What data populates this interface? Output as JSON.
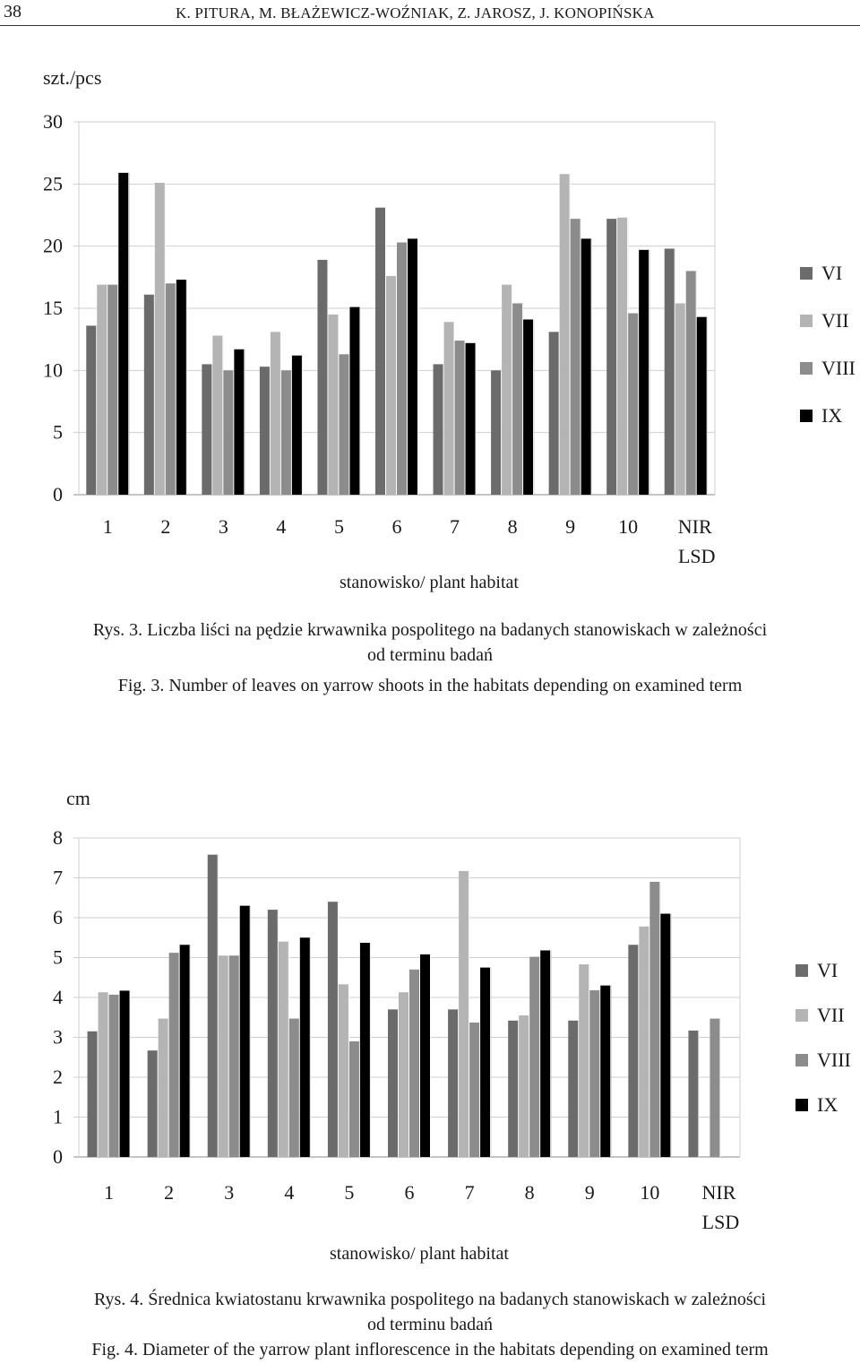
{
  "header": {
    "page_number": "38",
    "authors": "K. PITURA, M. BŁAŻEWICZ-WOŹNIAK, Z. JAROSZ, J. KONOPIŃSKA"
  },
  "colors": {
    "VI": "#6b6b6b",
    "VII": "#b4b4b4",
    "VIII": "#8c8c8c",
    "IX": "#000000"
  },
  "chart_data": [
    {
      "type": "bar",
      "title": "",
      "ylabel": "szt./pcs",
      "xlabel": "stanowisko/ plant habitat",
      "ylim": [
        0,
        30
      ],
      "yticks": [
        "0",
        "5",
        "10",
        "15",
        "20",
        "25",
        "30"
      ],
      "categories": [
        "1",
        "2",
        "3",
        "4",
        "5",
        "6",
        "7",
        "8",
        "9",
        "10",
        "NIR\nLSD"
      ],
      "category_lines": [
        [
          "1"
        ],
        [
          "2"
        ],
        [
          "3"
        ],
        [
          "4"
        ],
        [
          "5"
        ],
        [
          "6"
        ],
        [
          "7"
        ],
        [
          "8"
        ],
        [
          "9"
        ],
        [
          "10"
        ],
        [
          "NIR",
          "LSD"
        ]
      ],
      "legend": [
        "VI",
        "VII",
        "VIII",
        "IX"
      ],
      "series": [
        {
          "name": "VI",
          "values": [
            13.6,
            16.1,
            10.5,
            10.3,
            18.9,
            23.1,
            10.5,
            10.0,
            13.1,
            22.2,
            19.8
          ]
        },
        {
          "name": "VII",
          "values": [
            16.9,
            25.1,
            12.8,
            13.1,
            14.5,
            17.6,
            13.9,
            16.9,
            25.8,
            22.3,
            15.4
          ]
        },
        {
          "name": "VIII",
          "values": [
            16.9,
            17.0,
            10.0,
            10.0,
            11.3,
            20.3,
            12.4,
            15.4,
            22.2,
            14.6,
            18.0
          ]
        },
        {
          "name": "IX",
          "values": [
            25.9,
            17.3,
            11.7,
            11.2,
            15.1,
            20.6,
            12.2,
            14.1,
            20.6,
            19.7,
            14.3
          ]
        }
      ]
    },
    {
      "type": "bar",
      "title": "",
      "ylabel": "cm",
      "xlabel": "stanowisko/ plant habitat",
      "ylim": [
        0,
        8
      ],
      "yticks": [
        "0",
        "1",
        "2",
        "3",
        "4",
        "5",
        "6",
        "7",
        "8"
      ],
      "categories": [
        "1",
        "2",
        "3",
        "4",
        "5",
        "6",
        "7",
        "8",
        "9",
        "10",
        "NIR\nLSD"
      ],
      "category_lines": [
        [
          "1"
        ],
        [
          "2"
        ],
        [
          "3"
        ],
        [
          "4"
        ],
        [
          "5"
        ],
        [
          "6"
        ],
        [
          "7"
        ],
        [
          "8"
        ],
        [
          "9"
        ],
        [
          "10"
        ],
        [
          "NIR",
          "LSD"
        ]
      ],
      "legend": [
        "VI",
        "VII",
        "VIII",
        "IX"
      ],
      "series": [
        {
          "name": "VI",
          "values": [
            3.15,
            2.67,
            7.58,
            6.2,
            6.4,
            3.7,
            3.7,
            3.42,
            3.42,
            5.32,
            3.17
          ]
        },
        {
          "name": "VII",
          "values": [
            4.13,
            3.47,
            5.05,
            5.4,
            4.33,
            4.13,
            7.17,
            3.55,
            4.83,
            5.78,
            0.0
          ]
        },
        {
          "name": "VIII",
          "values": [
            4.07,
            5.12,
            5.05,
            3.47,
            2.9,
            4.7,
            3.37,
            5.02,
            4.18,
            6.9,
            3.47
          ]
        },
        {
          "name": "IX",
          "values": [
            4.17,
            5.32,
            6.3,
            5.5,
            5.37,
            5.08,
            4.75,
            5.18,
            4.3,
            6.1,
            0.0
          ]
        }
      ]
    }
  ],
  "captions": [
    {
      "pl_line1": "Rys. 3. Liczba liści na pędzie krwawnika pospolitego na badanych stanowiskach w zależności",
      "pl_line2": "od terminu badań",
      "en": "Fig. 3. Number of leaves on  yarrow shoots in the habitats depending on examined term"
    },
    {
      "pl_line1": "Rys. 4. Średnica kwiatostanu krwawnika pospolitego na badanych stanowiskach w zależności",
      "pl_line2": "od terminu badań",
      "en": "Fig. 4. Diameter of the yarrow plant inflorescence in the habitats depending on examined term"
    }
  ]
}
